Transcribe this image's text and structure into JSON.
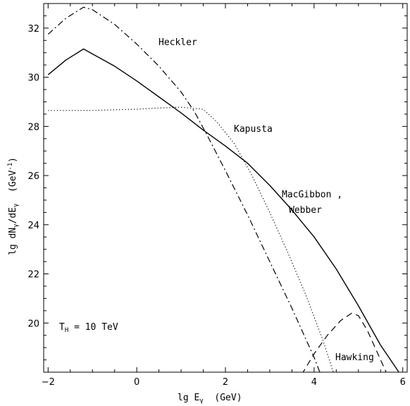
{
  "chart_data": {
    "type": "line",
    "title": "",
    "xlabel": {
      "base": "lg E",
      "sub": "γ",
      "tail": "  (GeV)"
    },
    "ylabel": {
      "a": "lg dN",
      "a_sub": "γ",
      "b": "/dE",
      "b_sub": "γ",
      "c": "  (GeV",
      "c_sup": "-1",
      "d": ")"
    },
    "xlim": [
      -2.1,
      6.1
    ],
    "ylim": [
      18,
      33
    ],
    "xticks": [
      -2,
      0,
      2,
      4,
      6
    ],
    "yticks": [
      20,
      22,
      24,
      26,
      28,
      30,
      32
    ],
    "annotations": {
      "heckler": "Heckler",
      "kapusta": "Kapusta",
      "macgibbon_line1": "MacGibbon ,",
      "macgibbon_line2": "Webber",
      "hawking": "Hawking",
      "temperature_main": "T",
      "temperature_sub": "H",
      "temperature_value": " = 10 TeV"
    },
    "series": [
      {
        "style": "solid",
        "points": [
          [
            -2.0,
            30.1
          ],
          [
            -1.6,
            30.7
          ],
          [
            -1.2,
            31.15
          ],
          [
            -1.0,
            30.95
          ],
          [
            -0.5,
            30.45
          ],
          [
            0.0,
            29.85
          ],
          [
            0.5,
            29.2
          ],
          [
            1.0,
            28.55
          ],
          [
            1.5,
            27.85
          ],
          [
            2.0,
            27.2
          ],
          [
            2.5,
            26.5
          ],
          [
            3.0,
            25.6
          ],
          [
            3.5,
            24.6
          ],
          [
            4.0,
            23.5
          ],
          [
            4.5,
            22.2
          ],
          [
            5.0,
            20.7
          ],
          [
            5.5,
            19.1
          ],
          [
            5.95,
            17.9
          ]
        ]
      },
      {
        "style": "dashdot",
        "points": [
          [
            -2.0,
            31.75
          ],
          [
            -1.6,
            32.4
          ],
          [
            -1.2,
            32.85
          ],
          [
            -1.0,
            32.75
          ],
          [
            -0.5,
            32.15
          ],
          [
            0.0,
            31.35
          ],
          [
            0.5,
            30.45
          ],
          [
            1.0,
            29.4
          ],
          [
            1.3,
            28.6
          ],
          [
            1.6,
            27.6
          ],
          [
            2.0,
            26.2
          ],
          [
            2.5,
            24.4
          ],
          [
            3.0,
            22.5
          ],
          [
            3.5,
            20.6
          ],
          [
            4.0,
            18.6
          ],
          [
            4.15,
            17.9
          ]
        ]
      },
      {
        "style": "dotted",
        "points": [
          [
            -2.0,
            28.65
          ],
          [
            -1.0,
            28.65
          ],
          [
            0.0,
            28.7
          ],
          [
            0.5,
            28.75
          ],
          [
            1.0,
            28.78
          ],
          [
            1.5,
            28.7
          ],
          [
            1.8,
            28.2
          ],
          [
            2.2,
            27.3
          ],
          [
            2.6,
            26.0
          ],
          [
            3.0,
            24.5
          ],
          [
            3.4,
            22.9
          ],
          [
            3.8,
            21.2
          ],
          [
            4.2,
            19.3
          ],
          [
            4.45,
            17.9
          ]
        ]
      },
      {
        "style": "dashed",
        "points": [
          [
            3.72,
            17.9
          ],
          [
            4.0,
            18.75
          ],
          [
            4.3,
            19.5
          ],
          [
            4.6,
            20.1
          ],
          [
            4.85,
            20.4
          ],
          [
            5.0,
            20.3
          ],
          [
            5.2,
            19.7
          ],
          [
            5.4,
            18.9
          ],
          [
            5.65,
            17.9
          ]
        ]
      }
    ]
  }
}
